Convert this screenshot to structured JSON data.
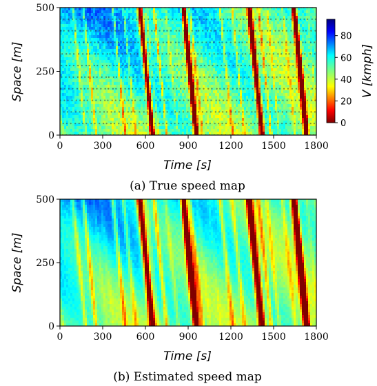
{
  "chart_data": [
    {
      "type": "heatmap",
      "title": "",
      "caption": "(a) True speed map",
      "xlabel": "Time [s]",
      "ylabel": "Space [m]",
      "xlim": [
        0,
        1800
      ],
      "ylim": [
        0,
        500
      ],
      "x_ticks": [
        "0",
        "300",
        "600",
        "900",
        "1200",
        "1500",
        "1800"
      ],
      "y_ticks": [
        "0",
        "250",
        "500"
      ],
      "trajectory_points": "shown",
      "congestion_waves": [
        {
          "t_at_space_500": 560,
          "t_at_space_0": 650
        },
        {
          "t_at_space_500": 870,
          "t_at_space_0": 960
        },
        {
          "t_at_space_500": 1330,
          "t_at_space_0": 1420
        },
        {
          "t_at_space_500": 1640,
          "t_at_space_0": 1730
        }
      ],
      "colorbar": {
        "label": "V [kmph]",
        "ticks": [
          "0",
          "20",
          "40",
          "60",
          "80"
        ],
        "range": [
          0,
          95
        ],
        "colormap": "jet_r"
      }
    },
    {
      "type": "heatmap",
      "title": "",
      "caption": "(b) Estimated speed map",
      "xlabel": "Time [s]",
      "ylabel": "Space [m]",
      "xlim": [
        0,
        1800
      ],
      "ylim": [
        0,
        500
      ],
      "x_ticks": [
        "0",
        "300",
        "600",
        "900",
        "1200",
        "1500",
        "1800"
      ],
      "y_ticks": [
        "0",
        "250",
        "500"
      ],
      "congestion_waves": [
        {
          "t_at_space_500": 560,
          "t_at_space_0": 650
        },
        {
          "t_at_space_500": 870,
          "t_at_space_0": 960
        },
        {
          "t_at_space_500": 1330,
          "t_at_space_0": 1420
        },
        {
          "t_at_space_500": 1640,
          "t_at_space_0": 1730
        }
      ]
    }
  ]
}
